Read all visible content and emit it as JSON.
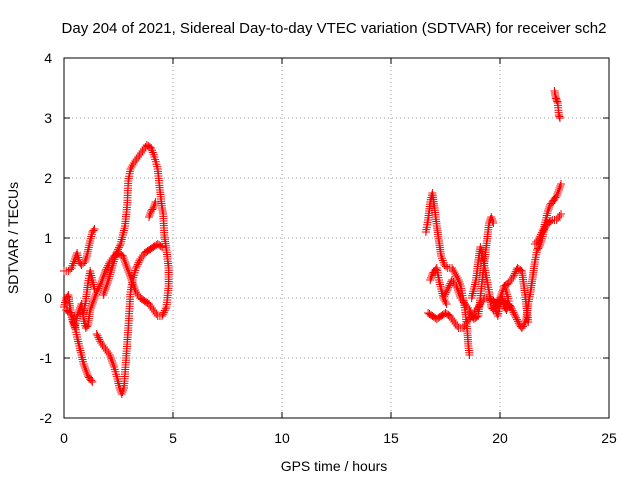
{
  "chart_data": {
    "type": "scatter",
    "title": "Day 204 of 2021, Sidereal Day-to-day VTEC variation (SDTVAR) for receiver sch2",
    "xlabel": "GPS time / hours",
    "ylabel": "SDTVAR / TECUs",
    "xlim": [
      0,
      25
    ],
    "ylim": [
      -2,
      4
    ],
    "xticks": [
      0,
      5,
      10,
      15,
      20,
      25
    ],
    "yticks": [
      -2,
      -1,
      0,
      1,
      2,
      3,
      4
    ],
    "xtick_labels": [
      "0",
      "5",
      "10",
      "15",
      "20",
      "25"
    ],
    "ytick_labels": [
      "-2",
      "-1",
      "0",
      "1",
      "2",
      "3",
      "4"
    ],
    "grid": true,
    "marker": "+",
    "color": "#ff0000",
    "series": [
      {
        "name": "",
        "tracks": [
          [
            [
              0.0,
              0.45
            ],
            [
              0.2,
              0.45
            ],
            [
              0.35,
              0.5
            ],
            [
              0.5,
              0.65
            ],
            [
              0.6,
              0.75
            ],
            [
              0.7,
              0.6
            ],
            [
              0.8,
              0.55
            ],
            [
              0.95,
              0.6
            ],
            [
              1.05,
              0.7
            ],
            [
              1.2,
              0.95
            ],
            [
              1.3,
              1.1
            ],
            [
              1.4,
              1.15
            ]
          ],
          [
            [
              0.0,
              -0.15
            ],
            [
              0.1,
              0.0
            ],
            [
              0.2,
              0.05
            ],
            [
              0.3,
              -0.2
            ],
            [
              0.4,
              -0.4
            ],
            [
              0.5,
              -0.5
            ],
            [
              0.6,
              -0.3
            ],
            [
              0.7,
              -0.2
            ],
            [
              0.8,
              -0.1
            ],
            [
              0.9,
              -0.35
            ],
            [
              1.0,
              -0.5
            ],
            [
              1.1,
              -0.45
            ],
            [
              1.2,
              -0.2
            ],
            [
              1.3,
              -0.1
            ]
          ],
          [
            [
              0.1,
              -0.2
            ],
            [
              0.3,
              -0.25
            ],
            [
              0.5,
              -0.45
            ],
            [
              0.6,
              -0.65
            ],
            [
              0.7,
              -0.8
            ],
            [
              0.8,
              -0.95
            ],
            [
              0.9,
              -1.1
            ],
            [
              1.0,
              -1.2
            ],
            [
              1.1,
              -1.3
            ],
            [
              1.2,
              -1.35
            ],
            [
              1.3,
              -1.4
            ]
          ],
          [
            [
              1.3,
              -0.1
            ],
            [
              1.5,
              0.1
            ],
            [
              1.7,
              0.25
            ],
            [
              1.9,
              0.45
            ],
            [
              2.1,
              0.6
            ],
            [
              2.3,
              0.7
            ],
            [
              2.5,
              0.75
            ],
            [
              2.7,
              0.7
            ],
            [
              2.9,
              0.5
            ],
            [
              3.1,
              0.3
            ],
            [
              3.3,
              0.1
            ],
            [
              3.5,
              0.0
            ],
            [
              3.7,
              -0.05
            ],
            [
              3.9,
              -0.1
            ],
            [
              4.1,
              -0.2
            ],
            [
              4.3,
              -0.3
            ],
            [
              4.5,
              -0.3
            ],
            [
              4.7,
              -0.15
            ],
            [
              4.8,
              0.2
            ],
            [
              4.8,
              0.5
            ]
          ],
          [
            [
              1.5,
              -0.6
            ],
            [
              1.7,
              -0.75
            ],
            [
              1.9,
              -0.85
            ],
            [
              2.1,
              -0.95
            ],
            [
              2.3,
              -1.15
            ],
            [
              2.45,
              -1.35
            ],
            [
              2.55,
              -1.5
            ],
            [
              2.65,
              -1.6
            ],
            [
              2.75,
              -1.5
            ],
            [
              2.85,
              -1.0
            ],
            [
              2.95,
              -0.5
            ],
            [
              3.05,
              0.1
            ],
            [
              3.15,
              0.3
            ],
            [
              3.3,
              0.5
            ],
            [
              3.5,
              0.65
            ],
            [
              3.7,
              0.75
            ],
            [
              3.9,
              0.8
            ],
            [
              4.1,
              0.85
            ],
            [
              4.3,
              0.9
            ],
            [
              4.5,
              0.85
            ]
          ],
          [
            [
              1.8,
              0.05
            ],
            [
              2.0,
              0.25
            ],
            [
              2.2,
              0.5
            ],
            [
              2.4,
              0.75
            ],
            [
              2.6,
              0.9
            ],
            [
              2.8,
              1.2
            ],
            [
              2.9,
              1.55
            ],
            [
              2.95,
              1.95
            ],
            [
              3.05,
              2.15
            ],
            [
              3.2,
              2.25
            ],
            [
              3.4,
              2.35
            ],
            [
              3.6,
              2.45
            ],
            [
              3.8,
              2.55
            ],
            [
              4.0,
              2.5
            ],
            [
              4.15,
              2.35
            ],
            [
              4.3,
              2.15
            ],
            [
              4.4,
              1.8
            ],
            [
              4.5,
              1.5
            ],
            [
              4.55,
              1.4
            ],
            [
              4.6,
              1.05
            ],
            [
              4.7,
              0.8
            ],
            [
              4.8,
              0.5
            ]
          ],
          [
            [
              3.9,
              1.35
            ],
            [
              4.0,
              1.45
            ],
            [
              4.1,
              1.5
            ],
            [
              4.2,
              1.6
            ]
          ],
          [
            [
              0.9,
              -0.25
            ],
            [
              1.0,
              -0.05
            ],
            [
              1.1,
              0.25
            ],
            [
              1.2,
              0.45
            ],
            [
              1.3,
              0.3
            ],
            [
              1.4,
              0.15
            ]
          ]
        ]
      },
      {
        "name": "",
        "tracks": [
          [
            [
              16.6,
              1.1
            ],
            [
              16.7,
              1.3
            ],
            [
              16.8,
              1.6
            ],
            [
              16.9,
              1.75
            ],
            [
              17.0,
              1.5
            ],
            [
              17.1,
              1.2
            ],
            [
              17.2,
              0.95
            ],
            [
              17.3,
              0.7
            ],
            [
              17.45,
              0.55
            ],
            [
              17.6,
              0.5
            ],
            [
              17.8,
              0.5
            ],
            [
              17.95,
              0.4
            ],
            [
              18.1,
              0.3
            ],
            [
              18.2,
              0.2
            ],
            [
              18.3,
              0.0
            ],
            [
              18.4,
              -0.2
            ],
            [
              18.5,
              -0.55
            ],
            [
              18.55,
              -0.8
            ],
            [
              18.6,
              -0.95
            ]
          ],
          [
            [
              16.7,
              -0.25
            ],
            [
              16.9,
              -0.3
            ],
            [
              17.1,
              -0.35
            ],
            [
              17.3,
              -0.3
            ],
            [
              17.5,
              -0.25
            ],
            [
              17.7,
              -0.3
            ],
            [
              17.9,
              -0.4
            ],
            [
              18.1,
              -0.5
            ],
            [
              18.3,
              -0.5
            ],
            [
              18.5,
              -0.4
            ],
            [
              18.7,
              -0.3
            ],
            [
              18.9,
              -0.2
            ],
            [
              19.1,
              -0.1
            ],
            [
              19.3,
              0.0
            ],
            [
              19.5,
              0.0
            ],
            [
              19.7,
              -0.05
            ],
            [
              19.9,
              -0.1
            ]
          ],
          [
            [
              16.8,
              0.3
            ],
            [
              16.9,
              0.4
            ],
            [
              17.0,
              0.45
            ],
            [
              17.1,
              0.5
            ],
            [
              17.2,
              0.3
            ],
            [
              17.3,
              0.15
            ],
            [
              17.4,
              0.0
            ],
            [
              17.55,
              -0.1
            ]
          ],
          [
            [
              17.4,
              0.0
            ],
            [
              17.6,
              0.15
            ],
            [
              17.8,
              0.3
            ],
            [
              18.0,
              0.2
            ],
            [
              18.2,
              0.0
            ],
            [
              18.4,
              -0.1
            ],
            [
              18.6,
              -0.2
            ],
            [
              18.8,
              -0.35
            ],
            [
              19.0,
              -0.3
            ],
            [
              19.1,
              0.0
            ],
            [
              19.2,
              0.35
            ],
            [
              19.3,
              0.65
            ],
            [
              19.4,
              0.95
            ],
            [
              19.5,
              1.25
            ],
            [
              19.6,
              1.35
            ],
            [
              19.7,
              1.25
            ]
          ],
          [
            [
              18.7,
              0.0
            ],
            [
              18.9,
              0.3
            ],
            [
              19.0,
              0.6
            ],
            [
              19.1,
              0.85
            ],
            [
              19.2,
              0.7
            ],
            [
              19.3,
              0.5
            ],
            [
              19.4,
              0.3
            ],
            [
              19.5,
              0.1
            ],
            [
              19.6,
              -0.15
            ],
            [
              19.7,
              -0.2
            ],
            [
              19.8,
              -0.15
            ],
            [
              19.9,
              -0.05
            ],
            [
              20.0,
              0.0
            ],
            [
              20.1,
              0.1
            ],
            [
              20.2,
              0.2
            ],
            [
              20.3,
              0.1
            ],
            [
              20.4,
              -0.05
            ]
          ],
          [
            [
              19.7,
              -0.05
            ],
            [
              19.8,
              -0.2
            ],
            [
              19.9,
              -0.3
            ],
            [
              20.0,
              -0.1
            ],
            [
              20.1,
              0.0
            ],
            [
              20.2,
              -0.15
            ],
            [
              20.3,
              -0.2
            ],
            [
              20.4,
              -0.1
            ],
            [
              20.5,
              -0.15
            ]
          ],
          [
            [
              20.1,
              -0.05
            ],
            [
              20.3,
              -0.1
            ],
            [
              20.5,
              -0.15
            ],
            [
              20.7,
              -0.3
            ],
            [
              20.9,
              -0.45
            ],
            [
              21.0,
              -0.5
            ],
            [
              21.1,
              -0.45
            ],
            [
              21.2,
              -0.35
            ],
            [
              21.3,
              -0.1
            ],
            [
              21.4,
              0.1
            ],
            [
              21.5,
              0.35
            ],
            [
              21.6,
              0.6
            ],
            [
              21.7,
              0.8
            ],
            [
              21.8,
              0.85
            ],
            [
              21.9,
              0.95
            ],
            [
              22.0,
              1.1
            ],
            [
              22.1,
              1.2
            ],
            [
              22.2,
              1.25
            ],
            [
              22.4,
              1.3
            ],
            [
              22.6,
              1.3
            ],
            [
              22.8,
              1.4
            ]
          ],
          [
            [
              20.2,
              0.2
            ],
            [
              20.4,
              0.25
            ],
            [
              20.6,
              0.35
            ],
            [
              20.8,
              0.5
            ],
            [
              21.0,
              0.45
            ],
            [
              21.1,
              0.2
            ],
            [
              21.2,
              -0.1
            ],
            [
              21.3,
              -0.4
            ]
          ],
          [
            [
              21.6,
              0.9
            ],
            [
              21.8,
              1.0
            ],
            [
              22.0,
              1.15
            ],
            [
              22.1,
              1.3
            ],
            [
              22.2,
              1.45
            ],
            [
              22.3,
              1.55
            ],
            [
              22.4,
              1.6
            ],
            [
              22.5,
              1.65
            ],
            [
              22.6,
              1.7
            ],
            [
              22.7,
              1.8
            ],
            [
              22.8,
              1.9
            ]
          ],
          [
            [
              22.5,
              3.45
            ],
            [
              22.55,
              3.35
            ],
            [
              22.6,
              3.3
            ],
            [
              22.65,
              3.25
            ],
            [
              22.7,
              3.05
            ],
            [
              22.75,
              3.0
            ]
          ]
        ]
      }
    ]
  }
}
